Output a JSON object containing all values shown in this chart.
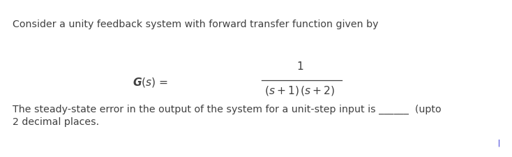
{
  "line1": "Consider a unity feedback system with forward transfer function given by",
  "line3_part1": "The steady-state error in the output of the system for a unit-step input is ______  (upto",
  "line4": "2 decimal places.",
  "bg_color": "#ffffff",
  "text_color": "#404040",
  "font_size": 10.2,
  "fig_width": 7.34,
  "fig_height": 2.25,
  "dpi": 100
}
